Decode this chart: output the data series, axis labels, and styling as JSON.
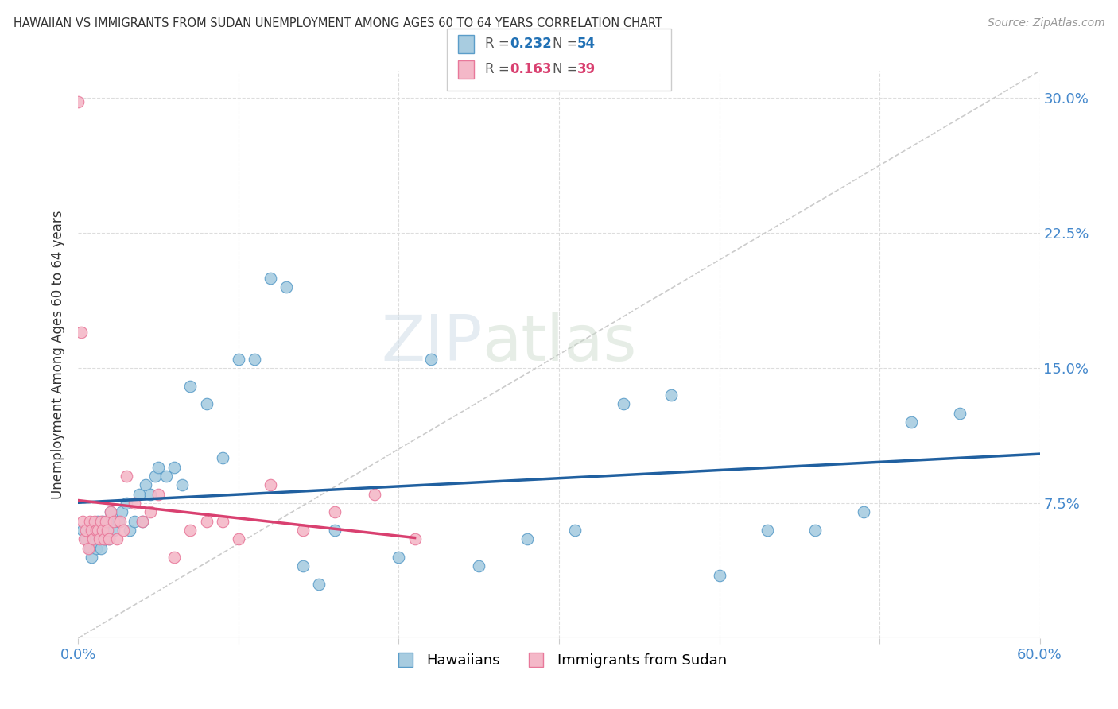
{
  "title": "HAWAIIAN VS IMMIGRANTS FROM SUDAN UNEMPLOYMENT AMONG AGES 60 TO 64 YEARS CORRELATION CHART",
  "source": "Source: ZipAtlas.com",
  "ylabel": "Unemployment Among Ages 60 to 64 years",
  "xlim": [
    0.0,
    0.6
  ],
  "ylim": [
    0.0,
    0.315
  ],
  "xtick_positions": [
    0.0,
    0.1,
    0.2,
    0.3,
    0.4,
    0.5,
    0.6
  ],
  "xticklabels": [
    "0.0%",
    "",
    "",
    "",
    "",
    "",
    "60.0%"
  ],
  "ytick_positions": [
    0.0,
    0.075,
    0.15,
    0.225,
    0.3
  ],
  "yticklabels_right": [
    "",
    "7.5%",
    "15.0%",
    "22.5%",
    "30.0%"
  ],
  "blue_fill": "#a8cce0",
  "blue_edge": "#5b9dc9",
  "pink_fill": "#f4b8c8",
  "pink_edge": "#e8789a",
  "blue_line_color": "#2060a0",
  "pink_line_color": "#d94070",
  "diag_color": "#cccccc",
  "grid_color": "#dddddd",
  "tick_label_color": "#4488cc",
  "hawaiians_x": [
    0.003,
    0.005,
    0.007,
    0.008,
    0.009,
    0.01,
    0.011,
    0.012,
    0.013,
    0.014,
    0.015,
    0.016,
    0.017,
    0.018,
    0.019,
    0.02,
    0.022,
    0.025,
    0.027,
    0.03,
    0.032,
    0.035,
    0.038,
    0.04,
    0.042,
    0.045,
    0.048,
    0.05,
    0.055,
    0.06,
    0.065,
    0.07,
    0.08,
    0.09,
    0.1,
    0.11,
    0.12,
    0.13,
    0.14,
    0.15,
    0.16,
    0.2,
    0.22,
    0.25,
    0.28,
    0.31,
    0.34,
    0.37,
    0.4,
    0.43,
    0.46,
    0.49,
    0.52,
    0.55
  ],
  "hawaiians_y": [
    0.06,
    0.055,
    0.05,
    0.045,
    0.055,
    0.06,
    0.05,
    0.065,
    0.055,
    0.05,
    0.065,
    0.055,
    0.06,
    0.065,
    0.055,
    0.07,
    0.06,
    0.065,
    0.07,
    0.075,
    0.06,
    0.065,
    0.08,
    0.065,
    0.085,
    0.08,
    0.09,
    0.095,
    0.09,
    0.095,
    0.085,
    0.14,
    0.13,
    0.1,
    0.155,
    0.155,
    0.2,
    0.195,
    0.04,
    0.03,
    0.06,
    0.045,
    0.155,
    0.04,
    0.055,
    0.06,
    0.13,
    0.135,
    0.035,
    0.06,
    0.06,
    0.07,
    0.12,
    0.125
  ],
  "sudan_x": [
    0.0,
    0.002,
    0.003,
    0.004,
    0.005,
    0.006,
    0.007,
    0.008,
    0.009,
    0.01,
    0.011,
    0.012,
    0.013,
    0.014,
    0.015,
    0.016,
    0.017,
    0.018,
    0.019,
    0.02,
    0.022,
    0.024,
    0.026,
    0.028,
    0.03,
    0.035,
    0.04,
    0.045,
    0.05,
    0.06,
    0.07,
    0.08,
    0.09,
    0.1,
    0.12,
    0.14,
    0.16,
    0.185,
    0.21
  ],
  "sudan_y": [
    0.298,
    0.17,
    0.065,
    0.055,
    0.06,
    0.05,
    0.065,
    0.06,
    0.055,
    0.065,
    0.06,
    0.06,
    0.055,
    0.065,
    0.06,
    0.055,
    0.065,
    0.06,
    0.055,
    0.07,
    0.065,
    0.055,
    0.065,
    0.06,
    0.09,
    0.075,
    0.065,
    0.07,
    0.08,
    0.045,
    0.06,
    0.065,
    0.065,
    0.055,
    0.085,
    0.06,
    0.07,
    0.08,
    0.055
  ],
  "watermark": "ZIPatlas",
  "legend_R_blue": "0.232",
  "legend_N_blue": "54",
  "legend_R_pink": "0.163",
  "legend_N_pink": "39"
}
